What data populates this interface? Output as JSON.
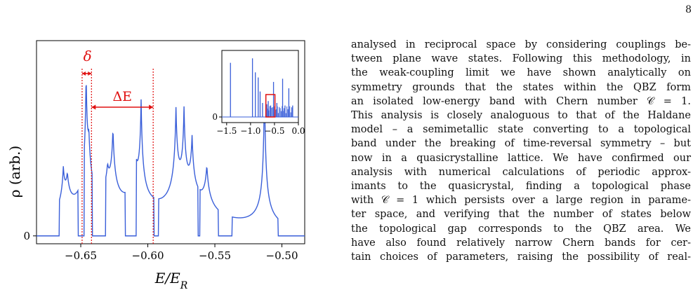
{
  "page": {
    "number": "8"
  },
  "figure": {
    "main": {
      "ylabel": "ρ (arb.)",
      "xlabel": "E/E_R",
      "y_tick": "0",
      "x_ticks": [
        "−0.65",
        "−0.60",
        "−0.55",
        "−0.50"
      ],
      "annotations": {
        "delta": "δ",
        "delta_e": "ΔE"
      }
    },
    "inset": {
      "x_ticks": [
        "−1.5",
        "−1.0",
        "−0.5",
        "0.0"
      ],
      "y_tick": "0"
    },
    "colors": {
      "line": "#3a5fd9",
      "annotation": "#e01010"
    }
  },
  "chart_data": [
    {
      "type": "line",
      "title": "",
      "xlabel": "E/E_R",
      "ylabel": "ρ (arb.)",
      "xlim": [
        -0.683,
        -0.483
      ],
      "ylim": [
        -0.05,
        1.24
      ],
      "series": [
        {
          "values": []
        }
      ],
      "peaks": [
        {
          "x": -0.663,
          "y": 0.26,
          "w": 0.0015
        },
        {
          "x": -0.66,
          "y": 0.2,
          "w": 0.002
        },
        {
          "x": -0.646,
          "y": 0.8,
          "w": 0.001
        },
        {
          "x": -0.644,
          "y": 0.3,
          "w": 0.0015
        },
        {
          "x": -0.626,
          "y": 0.48,
          "w": 0.0015
        },
        {
          "x": -0.63,
          "y": 0.18,
          "w": 0.002
        },
        {
          "x": -0.605,
          "y": 0.66,
          "w": 0.0012
        },
        {
          "x": -0.609,
          "y": 0.24,
          "w": 0.002
        },
        {
          "x": -0.579,
          "y": 0.6,
          "w": 0.0014
        },
        {
          "x": -0.573,
          "y": 0.55,
          "w": 0.0012
        },
        {
          "x": -0.567,
          "y": 0.4,
          "w": 0.0015
        },
        {
          "x": -0.556,
          "y": 0.3,
          "w": 0.002
        },
        {
          "x": -0.513,
          "y": 0.95,
          "w": 0.001
        }
      ],
      "annotations": [
        {
          "text": "δ",
          "from": -0.649,
          "to": -0.642
        },
        {
          "text": "ΔE",
          "from": -0.642,
          "to": -0.596
        }
      ]
    },
    {
      "type": "line",
      "title": "inset",
      "xlim": [
        -1.6,
        0.0
      ],
      "x_ticks": [
        -1.5,
        -1.0,
        -0.5,
        0.0
      ],
      "spikes": [
        {
          "x": -1.42,
          "h": 0.85
        },
        {
          "x": -0.96,
          "h": 0.92
        },
        {
          "x": -0.9,
          "h": 0.7
        },
        {
          "x": -0.84,
          "h": 0.62
        },
        {
          "x": -0.8,
          "h": 0.4
        },
        {
          "x": -0.75,
          "h": 0.22
        },
        {
          "x": -0.66,
          "h": 0.2
        },
        {
          "x": -0.63,
          "h": 0.25
        },
        {
          "x": -0.58,
          "h": 0.18
        },
        {
          "x": -0.52,
          "h": 0.55
        },
        {
          "x": -0.45,
          "h": 0.22
        },
        {
          "x": -0.33,
          "h": 0.6
        },
        {
          "x": -0.28,
          "h": 0.18
        },
        {
          "x": -0.2,
          "h": 0.45
        },
        {
          "x": -0.12,
          "h": 0.18
        }
      ],
      "highlight": {
        "from": -0.68,
        "to": -0.49
      }
    }
  ],
  "text": {
    "lines": [
      "analysed in reciprocal space by considering couplings be-",
      "tween plane wave states. Following this methodology, in",
      "the weak-coupling limit we have shown analytically on",
      "symmetry grounds that the states within the QBZ form",
      "an isolated low-energy band with Chern number 𝒞 = 1.",
      "This analysis is closely analoguous to that of the Haldane",
      "model – a semimetallic state converting to a topological",
      "band under the breaking of time-reversal symmetry – but",
      "now in a quasicrystalline lattice. We have confirmed our",
      "analysis with numerical calculations of periodic approx-",
      "imants to the quasicrystal, finding a topological phase",
      "with 𝒞 = 1 which persists over a large region in parame-",
      "ter space, and verifying that the number of states below",
      "the topological gap corresponds to the QBZ area. We",
      "have also found relatively narrow Chern bands for cer-",
      "tain choices of parameters, raising the possibility of real-"
    ]
  }
}
